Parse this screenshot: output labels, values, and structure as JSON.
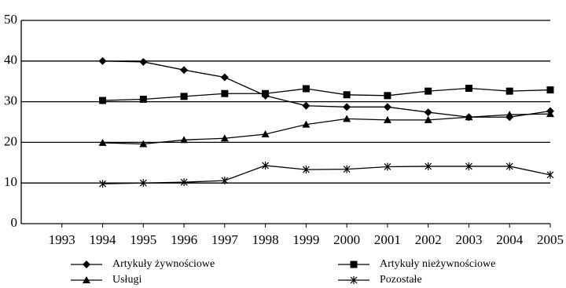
{
  "chart_data": {
    "type": "line",
    "x": [
      1994,
      1995,
      1996,
      1997,
      1998,
      1999,
      2000,
      2001,
      2002,
      2003,
      2004,
      2005
    ],
    "series": [
      {
        "name": "Artykuły żywnościowe",
        "color": "#000000",
        "marker": "diamond",
        "values": [
          40,
          39.8,
          37.8,
          36,
          31.5,
          29,
          28.7,
          28.7,
          27.4,
          26.2,
          26.2,
          27.7
        ]
      },
      {
        "name": "Artykuły nieżywnościowe",
        "color": "#000000",
        "marker": "square",
        "values": [
          30.3,
          30.6,
          31.3,
          32,
          32,
          33.2,
          31.7,
          31.5,
          32.6,
          33.3,
          32.6,
          32.9
        ]
      },
      {
        "name": "Usługi",
        "color": "#000000",
        "marker": "triangle",
        "values": [
          19.9,
          19.6,
          20.6,
          21,
          22,
          24.4,
          25.8,
          25.5,
          25.5,
          26.2,
          26.8,
          27
        ]
      },
      {
        "name": "Pozostałe",
        "color": "#000000",
        "marker": "star",
        "values": [
          9.8,
          10,
          10.2,
          10.6,
          14.3,
          13.3,
          13.4,
          14,
          14.1,
          14.1,
          14.1,
          12
        ]
      }
    ],
    "xlim": [
      1992,
      2005
    ],
    "xticks": [
      1993,
      1994,
      1995,
      1996,
      1997,
      1998,
      1999,
      2000,
      2001,
      2002,
      2003,
      2004,
      2005
    ],
    "ylim": [
      0,
      50
    ],
    "yticks": [
      0,
      10,
      20,
      30,
      40,
      50
    ],
    "grid": true,
    "legend": "bottom"
  }
}
